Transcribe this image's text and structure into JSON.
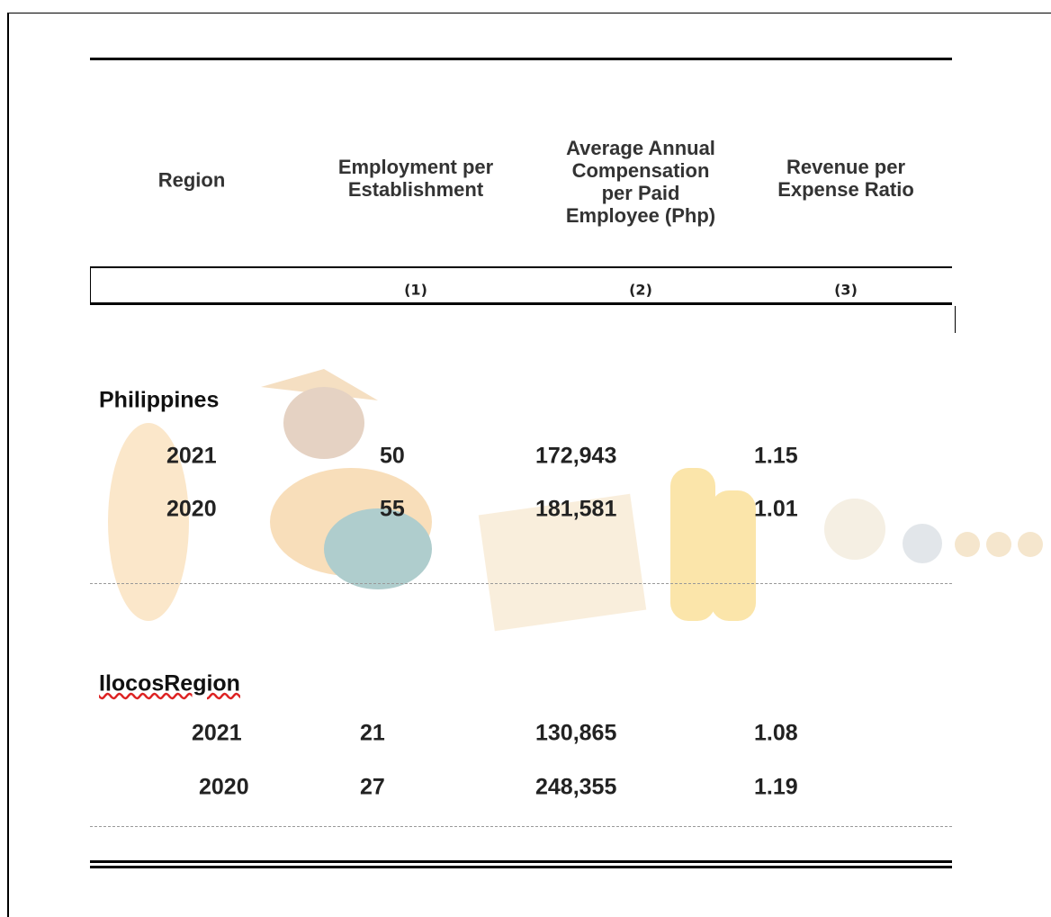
{
  "table": {
    "headers": [
      "Region",
      "Employment per Establishment",
      "Average Annual Compensation per Paid Employee (Php)",
      "Revenue per Expense Ratio"
    ],
    "column_numbers": [
      "(1)",
      "(2)",
      "(3)"
    ],
    "groups": [
      {
        "name": "Philippines",
        "rows": [
          [
            "2021",
            "50",
            "172,943",
            "1.15"
          ],
          [
            "2020",
            "55",
            "181,581",
            "1.01"
          ]
        ]
      },
      {
        "name": "IlocosRegion",
        "rows": [
          [
            "2021",
            "21",
            "130,865",
            "1.08"
          ],
          [
            "2020",
            "27",
            "248,355",
            "1.19"
          ]
        ]
      }
    ]
  }
}
